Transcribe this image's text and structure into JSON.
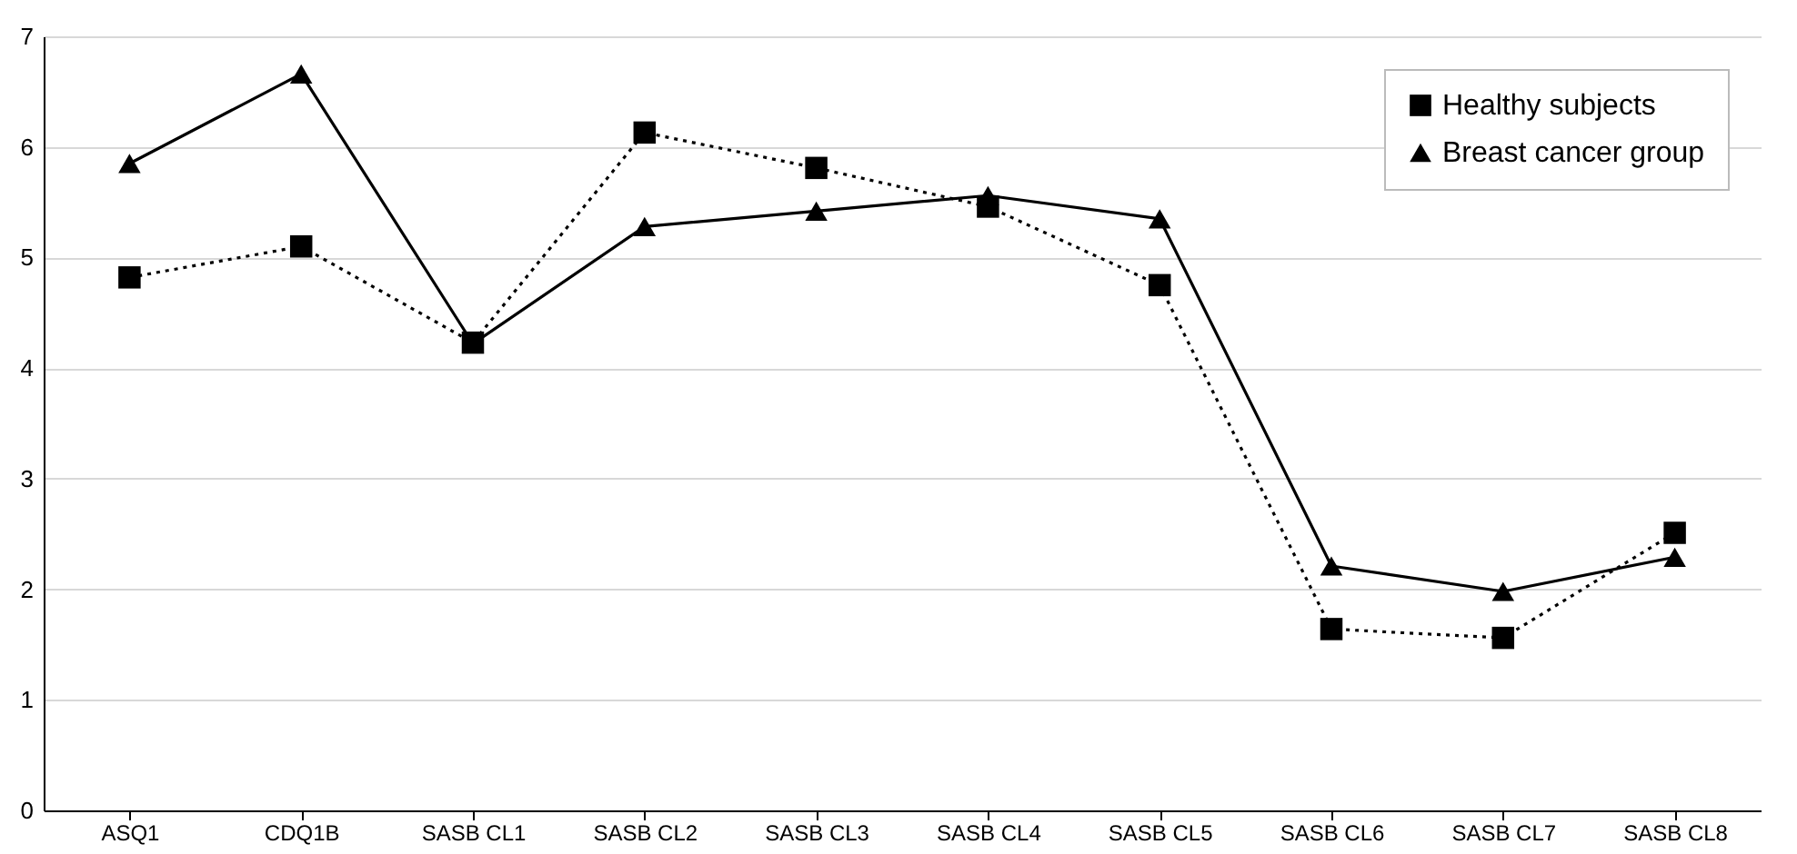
{
  "chart_data": {
    "type": "line",
    "categories": [
      "ASQ1",
      "CDQ1B",
      "SASB CL1",
      "SASB CL2",
      "SASB CL3",
      "SASB CL4",
      "SASB CL5",
      "SASB CL6",
      "SASB CL7",
      "SASB CL8"
    ],
    "series": [
      {
        "name": "Healthy subjects",
        "color": "#000000",
        "marker": "square",
        "line_style": "dotted",
        "values": [
          4.82,
          5.1,
          4.23,
          6.13,
          5.81,
          5.46,
          4.75,
          1.64,
          1.56,
          2.51
        ]
      },
      {
        "name": "Breast cancer group",
        "color": "#000000",
        "marker": "triangle",
        "line_style": "solid",
        "values": [
          5.85,
          6.66,
          4.22,
          5.28,
          5.42,
          5.56,
          5.35,
          2.21,
          1.98,
          2.29
        ]
      }
    ],
    "ylim": [
      0,
      7
    ],
    "yticks": [
      0,
      1,
      2,
      3,
      4,
      5,
      6,
      7
    ],
    "grid": "y",
    "legend": "top right"
  }
}
